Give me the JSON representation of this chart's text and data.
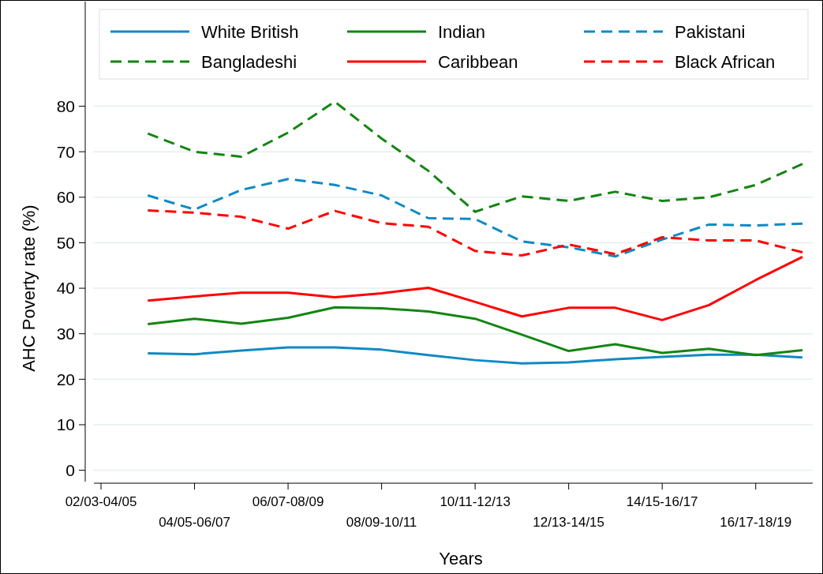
{
  "chart_data": {
    "type": "line",
    "xlabel": "Years",
    "ylabel": "AHC Poverty rate (%)",
    "categories": [
      "02/03-04/05",
      null,
      "04/05-06/07",
      null,
      "06/07-08/09",
      null,
      "08/09-10/11",
      null,
      "10/11-12/13",
      null,
      "12/13-14/15",
      null,
      "14/15-16/17",
      null,
      "16/17-18/19",
      null
    ],
    "ylim": [
      -2.5,
      103
    ],
    "yticks": [
      0,
      10,
      20,
      30,
      40,
      50,
      60,
      70,
      80
    ],
    "grid": "y",
    "legend": "top",
    "series": [
      {
        "name": "White British",
        "color": "#0f8ac4",
        "line_style": "solid",
        "values": [
          null,
          25.7,
          25.5,
          26.3,
          27,
          27,
          26.5,
          25.3,
          24.2,
          23.5,
          23.7,
          24.4,
          24.9,
          25.4,
          25.4,
          24.8
        ]
      },
      {
        "name": "Indian",
        "color": "#138513",
        "line_style": "solid",
        "values": [
          null,
          32.1,
          33.3,
          32.2,
          33.5,
          35.8,
          35.6,
          34.9,
          33.3,
          29.8,
          26.2,
          27.7,
          25.8,
          26.7,
          25.3,
          26.4
        ]
      },
      {
        "name": "Pakistani",
        "color": "#0f8ac4",
        "line_style": "dashed",
        "values": [
          null,
          60.4,
          57.3,
          61.6,
          64,
          62.7,
          60.4,
          55.4,
          55.2,
          50.3,
          49,
          47,
          50.7,
          54,
          53.8,
          54.2
        ]
      },
      {
        "name": "Bangladeshi",
        "color": "#138513",
        "line_style": "dashed",
        "values": [
          null,
          74,
          70,
          68.9,
          74.2,
          81,
          72.9,
          65.8,
          56.8,
          60.2,
          59.2,
          61.2,
          59.2,
          60,
          62.7,
          67.3
        ]
      },
      {
        "name": "Caribbean",
        "color": "#ff0000",
        "line_style": "solid",
        "values": [
          null,
          37.3,
          38.2,
          39,
          39,
          38,
          38.9,
          40.1,
          37,
          33.8,
          35.7,
          35.7,
          33,
          36.3,
          41.8,
          46.9
        ]
      },
      {
        "name": "Black African",
        "color": "#ff0000",
        "line_style": "dashed",
        "values": [
          null,
          57.1,
          56.6,
          55.7,
          53.1,
          57,
          54.3,
          53.5,
          48.2,
          47.2,
          49.6,
          47.5,
          51.2,
          50.5,
          50.5,
          47.9
        ]
      }
    ]
  }
}
